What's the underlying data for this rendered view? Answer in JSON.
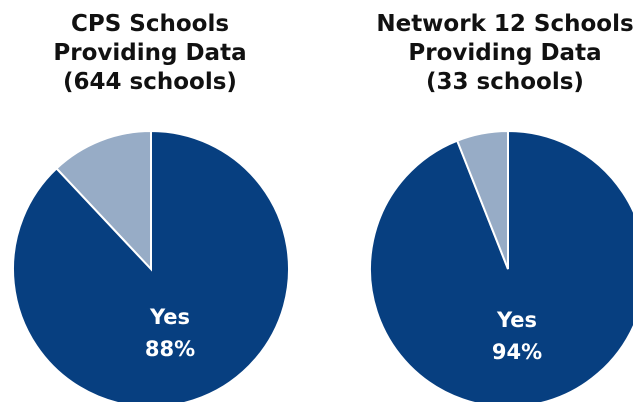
{
  "chart_data": [
    {
      "type": "pie",
      "title": "CPS Schools\nProviding Data\n(644 schools)",
      "slices": [
        {
          "name": "Yes",
          "value": 88,
          "label": "88%",
          "color": "#073F80"
        },
        {
          "name": "",
          "value": 12,
          "label": "",
          "color": "#97ACC6"
        }
      ]
    },
    {
      "type": "pie",
      "title": "Network 12 Schools\nProviding Data\n(33 schools)",
      "slices": [
        {
          "name": "Yes",
          "value": 94,
          "label": "94%",
          "color": "#073F80"
        },
        {
          "name": "",
          "value": 6,
          "label": "",
          "color": "#97ACC6"
        }
      ]
    }
  ]
}
